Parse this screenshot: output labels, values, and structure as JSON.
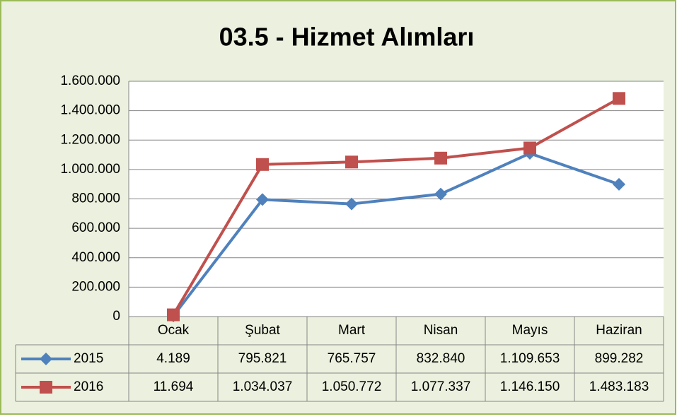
{
  "chart_data": {
    "type": "line",
    "title": "03.5 - Hizmet Alımları",
    "categories": [
      "Ocak",
      "Şubat",
      "Mart",
      "Nisan",
      "Mayıs",
      "Haziran"
    ],
    "series": [
      {
        "name": "2015",
        "color": "#4f81bd",
        "marker": "diamond",
        "values": [
          4189,
          795821,
          765757,
          832840,
          1109653,
          899282
        ],
        "value_labels": [
          "4.189",
          "795.821",
          "765.757",
          "832.840",
          "1.109.653",
          "899.282"
        ]
      },
      {
        "name": "2016",
        "color": "#c0504d",
        "marker": "square",
        "values": [
          11694,
          1034037,
          1050772,
          1077337,
          1146150,
          1483183
        ],
        "value_labels": [
          "11.694",
          "1.034.037",
          "1.050.772",
          "1.077.337",
          "1.146.150",
          "1.483.183"
        ]
      }
    ],
    "ylim": [
      0,
      1600000
    ],
    "yticks": [
      0,
      {
        "value": 200000,
        "label": "200.000"
      },
      {
        "value": 400000,
        "label": "400.000"
      },
      {
        "value": 600000,
        "label": "600.000"
      },
      {
        "value": 800000,
        "label": "800.000"
      },
      {
        "value": 1000000,
        "label": "1.000.000"
      },
      {
        "value": 1200000,
        "label": "1.200.000"
      },
      {
        "value": 1400000,
        "label": "1.400.000"
      },
      {
        "value": 1600000,
        "label": "1.600.000"
      }
    ],
    "grid": true,
    "data_table": true
  }
}
